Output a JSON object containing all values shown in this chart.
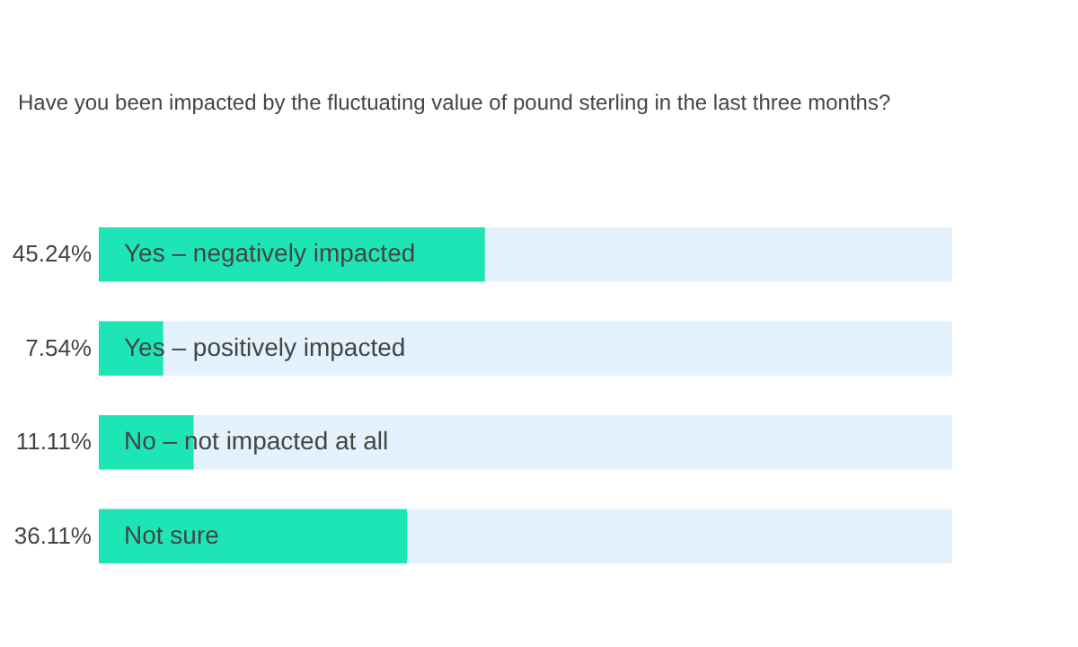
{
  "chart_data": {
    "type": "bar",
    "orientation": "horizontal",
    "title": "Have you been impacted by the fluctuating value of pound sterling in the last three months?",
    "categories": [
      "Yes – negatively impacted",
      "Yes – positively impacted",
      "No – not impacted at all",
      "Not sure"
    ],
    "values": [
      45.24,
      7.54,
      11.11,
      36.11
    ],
    "value_labels": [
      "45.24%",
      "7.54%",
      "11.11%",
      "36.11%"
    ],
    "color": "#1de5b5",
    "xlim": [
      0,
      100
    ],
    "tick_labels": false
  }
}
